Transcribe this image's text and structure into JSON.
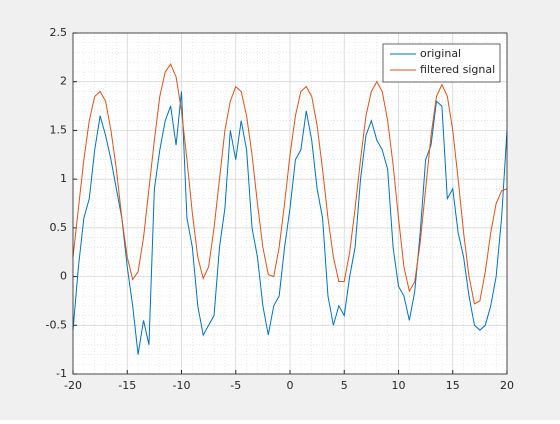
{
  "chart_data": {
    "type": "line",
    "x": [
      -20,
      -19.5,
      -19,
      -18.5,
      -18,
      -17.5,
      -17,
      -16.5,
      -16,
      -15.5,
      -15,
      -14.5,
      -14,
      -13.5,
      -13,
      -12.5,
      -12,
      -11.5,
      -11,
      -10.5,
      -10,
      -9.5,
      -9,
      -8.5,
      -8,
      -7.5,
      -7,
      -6.5,
      -6,
      -5.5,
      -5,
      -4.5,
      -4,
      -3.5,
      -3,
      -2.5,
      -2,
      -1.5,
      -1,
      -0.5,
      0,
      0.5,
      1,
      1.5,
      2,
      2.5,
      3,
      3.5,
      4,
      4.5,
      5,
      5.5,
      6,
      6.5,
      7,
      7.5,
      8,
      8.5,
      9,
      9.5,
      10,
      10.5,
      11,
      11.5,
      12,
      12.5,
      13,
      13.5,
      14,
      14.5,
      15,
      15.5,
      16,
      16.5,
      17,
      17.5,
      18,
      18.5,
      19,
      19.5,
      20
    ],
    "series": [
      {
        "name": "original",
        "color": "#0072bd",
        "values": [
          -0.55,
          0.1,
          0.6,
          0.8,
          1.3,
          1.65,
          1.45,
          1.2,
          0.9,
          0.6,
          0.1,
          -0.3,
          -0.8,
          -0.45,
          -0.7,
          0.9,
          1.3,
          1.6,
          1.75,
          1.35,
          1.9,
          0.6,
          0.3,
          -0.3,
          -0.6,
          -0.5,
          -0.4,
          0.3,
          0.7,
          1.5,
          1.2,
          1.6,
          1.3,
          0.5,
          0.2,
          -0.3,
          -0.6,
          -0.3,
          -0.2,
          0.3,
          0.7,
          1.2,
          1.3,
          1.7,
          1.4,
          0.9,
          0.6,
          -0.2,
          -0.5,
          -0.3,
          -0.4,
          0.0,
          0.3,
          1.0,
          1.45,
          1.6,
          1.4,
          1.3,
          1.1,
          0.3,
          -0.1,
          -0.2,
          -0.45,
          -0.15,
          0.45,
          1.2,
          1.35,
          1.8,
          1.75,
          0.8,
          0.9,
          0.45,
          0.2,
          -0.2,
          -0.5,
          -0.55,
          -0.5,
          -0.3,
          0.0,
          0.6,
          1.5
        ]
      },
      {
        "name": "filtered signal",
        "color": "#d95319",
        "values": [
          0.2,
          0.7,
          1.2,
          1.6,
          1.85,
          1.9,
          1.8,
          1.5,
          1.1,
          0.6,
          0.2,
          -0.03,
          0.05,
          0.4,
          0.9,
          1.4,
          1.85,
          2.1,
          2.18,
          2.05,
          1.7,
          1.2,
          0.65,
          0.2,
          -0.02,
          0.1,
          0.5,
          1.0,
          1.5,
          1.8,
          1.95,
          1.9,
          1.65,
          1.25,
          0.75,
          0.3,
          0.02,
          0.0,
          0.3,
          0.75,
          1.25,
          1.65,
          1.9,
          1.95,
          1.85,
          1.55,
          1.1,
          0.6,
          0.2,
          -0.05,
          -0.05,
          0.25,
          0.7,
          1.2,
          1.65,
          1.9,
          2.0,
          1.9,
          1.6,
          1.15,
          0.6,
          0.1,
          -0.15,
          -0.05,
          0.35,
          0.9,
          1.45,
          1.85,
          1.97,
          1.85,
          1.5,
          1.0,
          0.45,
          0.0,
          -0.28,
          -0.25,
          0.05,
          0.45,
          0.75,
          0.88,
          0.9
        ]
      }
    ],
    "xlim": [
      -20,
      20
    ],
    "xticks": [
      -20,
      -15,
      -10,
      -5,
      0,
      5,
      10,
      15,
      20
    ],
    "ylim": [
      -1,
      2.5
    ],
    "yticks": [
      -1,
      -0.5,
      0,
      0.5,
      1,
      1.5,
      2,
      2.5
    ],
    "grid": true,
    "minor_grid": true,
    "legend": "northeast"
  }
}
